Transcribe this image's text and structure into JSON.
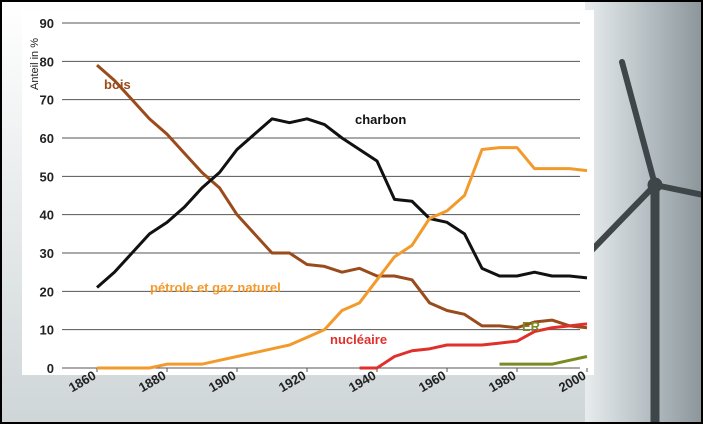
{
  "chart_data": {
    "type": "line",
    "y_label": "Anteil in %",
    "x": [
      1860,
      1865,
      1870,
      1875,
      1880,
      1885,
      1890,
      1895,
      1900,
      1905,
      1910,
      1915,
      1920,
      1925,
      1930,
      1935,
      1940,
      1945,
      1950,
      1955,
      1960,
      1965,
      1970,
      1975,
      1980,
      1985,
      1990,
      1995,
      2000
    ],
    "series": [
      {
        "name": "bois",
        "color": "#9a4b1c",
        "values": [
          79,
          75,
          70,
          65,
          61,
          56,
          51,
          47,
          40,
          35,
          30,
          30,
          27,
          26.5,
          25,
          26,
          24,
          24,
          23,
          17,
          15,
          14,
          11,
          11,
          10.5,
          12,
          12.5,
          11,
          10.5
        ]
      },
      {
        "name": "charbon",
        "color": "#111111",
        "values": [
          21,
          25,
          30,
          35,
          38,
          42,
          47,
          51,
          57,
          61,
          65,
          64,
          65,
          63.5,
          60,
          57,
          54,
          44,
          43.5,
          39,
          38,
          35,
          26,
          24,
          24,
          25,
          24,
          24,
          23.5
        ]
      },
      {
        "name": "pétrole et gaz naturel",
        "color": "#f39a2c",
        "values": [
          0,
          0,
          0,
          0,
          1,
          1,
          1,
          2,
          3,
          4,
          5,
          6,
          8,
          10,
          15,
          17,
          23,
          29,
          32,
          39,
          41,
          45,
          57,
          57.5,
          57.5,
          52,
          52,
          52,
          51.5
        ]
      },
      {
        "name": "nucléaire",
        "color": "#e0302c",
        "values": [
          null,
          null,
          null,
          null,
          null,
          null,
          null,
          null,
          null,
          null,
          null,
          null,
          null,
          null,
          null,
          0,
          0,
          3,
          4.5,
          5,
          6,
          6,
          6,
          6.5,
          7,
          9.5,
          10.5,
          11,
          11.5
        ]
      },
      {
        "name": "ER",
        "color": "#7b8a22",
        "values": [
          null,
          null,
          null,
          null,
          null,
          null,
          null,
          null,
          null,
          null,
          null,
          null,
          null,
          null,
          null,
          null,
          null,
          null,
          null,
          null,
          null,
          null,
          null,
          1,
          1,
          1,
          1,
          2,
          3
        ]
      }
    ],
    "xlim": [
      1850,
      2008
    ],
    "xticks": [
      1860,
      1880,
      1900,
      1920,
      1940,
      1960,
      1980,
      2000
    ],
    "ylim": [
      0,
      90
    ],
    "yticks": [
      0,
      10,
      20,
      30,
      40,
      50,
      60,
      70,
      80,
      90
    ],
    "grid": true
  }
}
